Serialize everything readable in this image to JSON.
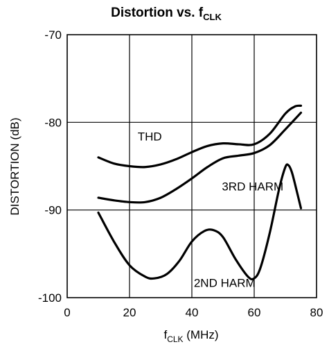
{
  "chart_data": {
    "type": "line",
    "title": "Distortion vs. f",
    "title_subscript": "CLK",
    "xlabel": "f",
    "xlabel_subscript": "CLK",
    "xlabel_unit": " (MHz)",
    "ylabel": "DISTORTION (dB)",
    "xlim": [
      0,
      80
    ],
    "ylim": [
      -100,
      -70
    ],
    "xticks": [
      0,
      20,
      40,
      60,
      80
    ],
    "yticks": [
      -70,
      -80,
      -90,
      -100
    ],
    "grid": true,
    "series": [
      {
        "name": "THD",
        "x": [
          10,
          15,
          20,
          25,
          30,
          35,
          40,
          45,
          50,
          55,
          60,
          65,
          70,
          73,
          75
        ],
        "y": [
          -84.0,
          -84.7,
          -85.0,
          -85.1,
          -84.8,
          -84.2,
          -83.4,
          -82.7,
          -82.4,
          -82.5,
          -82.5,
          -81.3,
          -79.0,
          -78.2,
          -78.1
        ]
      },
      {
        "name": "3RD HARM",
        "x": [
          10,
          15,
          20,
          25,
          30,
          35,
          40,
          45,
          50,
          55,
          60,
          65,
          70,
          75
        ],
        "y": [
          -88.6,
          -88.9,
          -89.1,
          -89.1,
          -88.6,
          -87.6,
          -86.4,
          -85.1,
          -84.1,
          -83.8,
          -83.5,
          -82.6,
          -80.8,
          -78.9
        ]
      },
      {
        "name": "2ND HARM",
        "x": [
          10,
          15,
          20,
          25,
          28,
          32,
          36,
          40,
          44,
          47,
          50,
          54,
          58,
          60,
          62,
          65,
          68,
          70,
          71,
          72,
          73,
          75
        ],
        "y": [
          -90.3,
          -93.6,
          -96.3,
          -97.6,
          -97.8,
          -97.3,
          -95.8,
          -93.6,
          -92.4,
          -92.3,
          -93.1,
          -95.6,
          -97.6,
          -97.8,
          -96.6,
          -92.6,
          -87.6,
          -85.1,
          -84.9,
          -85.6,
          -86.9,
          -89.8
        ]
      }
    ],
    "annotations": [
      {
        "text": "THD",
        "x": 26.5,
        "y": -81.6
      },
      {
        "text": "3RD HARM",
        "x": 59.5,
        "y": -87.3
      },
      {
        "text": "2ND HARM",
        "x": 50.5,
        "y": -98.3
      }
    ]
  }
}
